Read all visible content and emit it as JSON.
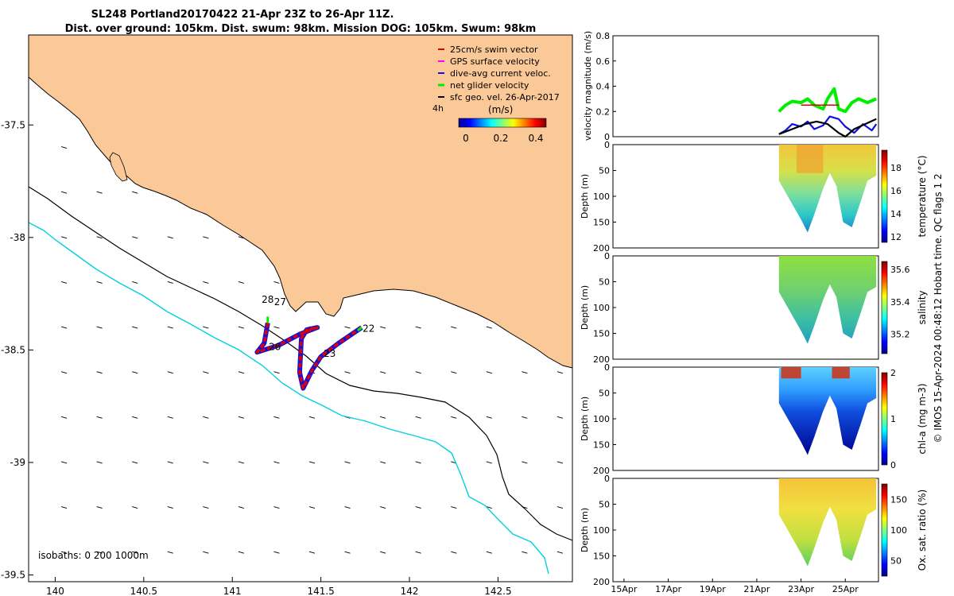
{
  "title_line1": "SL248 Portland20170422 21-Apr 23Z to 26-Apr 11Z.",
  "title_line2": "Dist. over ground: 105km. Dist. swum: 98km. Mission DOG: 105km. Swum: 98km",
  "watermark": "© IMOS 15-Apr-2024 00:48:12 Hobart time. QC flags 1  2",
  "chart_data": [
    {
      "type": "map",
      "xlim": [
        139.85,
        142.92
      ],
      "ylim": [
        -39.53,
        -37.1
      ],
      "x_ticks": [
        140,
        140.5,
        141,
        141.5,
        142,
        142.5
      ],
      "x_tick_labels": [
        "140",
        "140.5",
        "141",
        "141.5",
        "142",
        "142.5"
      ],
      "y_ticks": [
        -37.5,
        -38,
        -38.5,
        -39,
        -39.5
      ],
      "y_tick_labels": [
        "-37.5",
        "-38",
        "-38.5",
        "-39",
        "-39.5"
      ],
      "legend": [
        {
          "label": "25cm/s swim vector",
          "color": "#e00000"
        },
        {
          "label": "GPS surface velocity",
          "color": "#ff00ff"
        },
        {
          "label": "dive-avg current veloc.",
          "color": "#1010e0"
        },
        {
          "label": "net glider velocity",
          "color": "#00ee00"
        },
        {
          "label": "sfc geo. vel. 26-Apr-2017",
          "color": "#000000"
        }
      ],
      "scale_label": "4h",
      "colorbar": {
        "label": "(m/s)",
        "range": [
          0,
          0.5
        ],
        "tick_values": [
          0,
          0.2,
          0.4
        ],
        "tick_labels": [
          "0",
          "0.2",
          "0.4"
        ]
      },
      "isobaths_label": "isobaths: 0   200  1000m",
      "day_labels": [
        {
          "text": "22",
          "lon": 141.77,
          "lat": -38.42
        },
        {
          "text": "23",
          "lon": 141.55,
          "lat": -38.53
        },
        {
          "text": "26",
          "lon": 141.24,
          "lat": -38.5
        },
        {
          "text": "28",
          "lon": 141.2,
          "lat": -38.29
        },
        {
          "text": "27",
          "lon": 141.27,
          "lat": -38.3
        }
      ],
      "glider_track": [
        [
          141.73,
          -38.4
        ],
        [
          141.6,
          -38.47
        ],
        [
          141.5,
          -38.53
        ],
        [
          141.45,
          -38.59
        ],
        [
          141.4,
          -38.67
        ],
        [
          141.38,
          -38.6
        ],
        [
          141.39,
          -38.45
        ],
        [
          141.42,
          -38.41
        ],
        [
          141.48,
          -38.4
        ],
        [
          141.38,
          -38.43
        ],
        [
          141.26,
          -38.48
        ],
        [
          141.14,
          -38.51
        ],
        [
          141.18,
          -38.47
        ],
        [
          141.2,
          -38.38
        ]
      ]
    },
    {
      "type": "line",
      "ylabel": "velocity magnitude (m/s)",
      "ylim": [
        0,
        0.8
      ],
      "y_ticks": [
        0,
        0.2,
        0.4,
        0.6,
        0.8
      ],
      "y_tick_labels": [
        "0",
        "0.2",
        "0.4",
        "0.6",
        "0.8"
      ],
      "series": [
        {
          "color": "#00ee00",
          "x": [
            22.0,
            22.3,
            22.6,
            23.0,
            23.3,
            23.6,
            24.0,
            24.2,
            24.5,
            24.7,
            25.0,
            25.3,
            25.6,
            26.0,
            26.4
          ],
          "values": [
            0.2,
            0.25,
            0.28,
            0.27,
            0.3,
            0.25,
            0.22,
            0.3,
            0.38,
            0.22,
            0.2,
            0.27,
            0.3,
            0.27,
            0.3
          ]
        },
        {
          "color": "#e00000",
          "x": [
            23.0,
            24.7
          ],
          "values": [
            0.25,
            0.25
          ]
        },
        {
          "color": "#1010e0",
          "x": [
            22.0,
            22.3,
            22.6,
            23.0,
            23.3,
            23.6,
            24.0,
            24.3,
            24.7,
            25.0,
            25.4,
            25.8,
            26.2,
            26.4
          ],
          "values": [
            0.02,
            0.05,
            0.1,
            0.08,
            0.12,
            0.06,
            0.09,
            0.16,
            0.14,
            0.08,
            0.03,
            0.1,
            0.05,
            0.1
          ]
        },
        {
          "color": "#000000",
          "x": [
            22.0,
            22.6,
            23.2,
            23.7,
            24.2,
            24.7,
            25.0,
            25.4,
            25.9,
            26.4
          ],
          "values": [
            0.02,
            0.06,
            0.1,
            0.12,
            0.1,
            0.03,
            0.0,
            0.06,
            0.1,
            0.14
          ]
        }
      ]
    },
    {
      "type": "heatmap",
      "ylabel": "Depth (m)",
      "ylim": [
        200,
        0
      ],
      "y_ticks": [
        0,
        50,
        100,
        150,
        200
      ],
      "y_tick_labels": [
        "0",
        "50",
        "100",
        "150",
        "200"
      ],
      "colorbar": {
        "label": "temperature (°C)",
        "range": [
          11.5,
          19.5
        ],
        "tick_values": [
          12,
          14,
          16,
          18
        ],
        "tick_labels": [
          "12",
          "14",
          "16",
          "18"
        ]
      },
      "profile": {
        "min_depth": 0,
        "max_depth_series": [
          [
            22.0,
            70
          ],
          [
            23.0,
            145
          ],
          [
            23.3,
            170
          ],
          [
            23.6,
            135
          ],
          [
            24.0,
            85
          ],
          [
            24.3,
            55
          ],
          [
            24.6,
            80
          ],
          [
            24.9,
            150
          ],
          [
            25.3,
            160
          ],
          [
            25.7,
            110
          ],
          [
            26.0,
            70
          ],
          [
            26.4,
            60
          ]
        ]
      }
    },
    {
      "type": "heatmap",
      "ylabel": "Depth (m)",
      "ylim": [
        200,
        0
      ],
      "y_ticks": [
        0,
        50,
        100,
        150,
        200
      ],
      "y_tick_labels": [
        "0",
        "50",
        "100",
        "150",
        "200"
      ],
      "colorbar": {
        "label": "salinity",
        "range": [
          35.08,
          35.65
        ],
        "tick_values": [
          35.2,
          35.4,
          35.6
        ],
        "tick_labels": [
          "35.2",
          "35.4",
          "35.6"
        ]
      }
    },
    {
      "type": "heatmap",
      "ylabel": "Depth (m)",
      "ylim": [
        200,
        0
      ],
      "y_ticks": [
        0,
        50,
        100,
        150,
        200
      ],
      "y_tick_labels": [
        "0",
        "50",
        "100",
        "150",
        "200"
      ],
      "colorbar": {
        "label": "chl-a (mg m-3)",
        "range": [
          0,
          2
        ],
        "tick_values": [
          0,
          1,
          2
        ],
        "tick_labels": [
          "0",
          "1",
          "2"
        ]
      }
    },
    {
      "type": "heatmap",
      "ylabel": "Depth (m)",
      "ylim": [
        200,
        0
      ],
      "y_ticks": [
        0,
        50,
        100,
        150,
        200
      ],
      "y_tick_labels": [
        "0",
        "50",
        "100",
        "150",
        "200"
      ],
      "x_ticks": [
        15,
        17,
        19,
        21,
        23,
        25
      ],
      "x_tick_labels": [
        "15Apr",
        "17Apr",
        "19Apr",
        "21Apr",
        "23Apr",
        "25Apr"
      ],
      "colorbar": {
        "label": "Ox. sat. ratio (%)",
        "range": [
          25,
          175
        ],
        "tick_values": [
          50,
          100,
          150
        ],
        "tick_labels": [
          "50",
          "100",
          "150"
        ]
      }
    }
  ]
}
